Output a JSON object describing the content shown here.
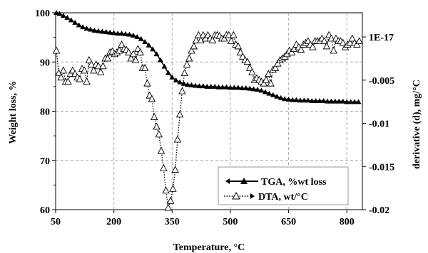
{
  "chart_data": {
    "type": "line",
    "xlabel": "Temperature, °C",
    "ylabel_left": "Weight loss,  %",
    "ylabel_right": "derivative (d), mg/°C",
    "xlim": [
      50,
      840
    ],
    "ylim_left": [
      60,
      100
    ],
    "ylim_right": [
      -0.02,
      0.0028
    ],
    "x_ticks": [
      50,
      200,
      350,
      500,
      650,
      800
    ],
    "x_tick_labels": [
      "50",
      "200",
      "350",
      "500",
      "650",
      "800"
    ],
    "y_left_ticks": [
      60,
      70,
      80,
      90,
      100
    ],
    "y_left_tick_labels": [
      "60",
      "70",
      "80",
      "90",
      "100"
    ],
    "y_right_ticks": [
      0,
      -0.005,
      -0.01,
      -0.015,
      -0.02
    ],
    "y_right_tick_labels": [
      "1E-17",
      "-0.005",
      "-0.01",
      "-0.015",
      "-0.02"
    ],
    "grid": true,
    "legend_position": "bottom-right",
    "series": [
      {
        "name": "TGA, %wt loss",
        "axis": "left",
        "style": "solid line with filled triangle markers",
        "x": [
          52,
          60,
          70,
          80,
          90,
          100,
          110,
          120,
          130,
          140,
          150,
          160,
          170,
          180,
          190,
          200,
          210,
          220,
          230,
          240,
          250,
          260,
          270,
          280,
          290,
          300,
          310,
          320,
          330,
          340,
          350,
          360,
          370,
          380,
          390,
          400,
          410,
          420,
          430,
          440,
          450,
          460,
          470,
          480,
          490,
          500,
          510,
          520,
          530,
          540,
          550,
          560,
          570,
          580,
          590,
          600,
          610,
          620,
          630,
          640,
          650,
          660,
          670,
          680,
          690,
          700,
          710,
          720,
          730,
          740,
          750,
          760,
          770,
          780,
          790,
          800,
          810,
          820,
          830
        ],
        "values": [
          100.0,
          99.8,
          99.4,
          99.0,
          98.5,
          98.0,
          97.5,
          97.1,
          96.8,
          96.6,
          96.4,
          96.3,
          96.2,
          96.1,
          96.0,
          95.9,
          95.8,
          95.8,
          95.7,
          95.6,
          95.4,
          95.1,
          94.7,
          94.1,
          93.4,
          92.6,
          91.6,
          90.4,
          89.1,
          87.8,
          86.9,
          86.3,
          85.9,
          85.6,
          85.4,
          85.3,
          85.2,
          85.1,
          85.1,
          85.0,
          85.0,
          85.0,
          84.9,
          84.9,
          84.9,
          84.8,
          84.8,
          84.8,
          84.7,
          84.7,
          84.6,
          84.5,
          84.4,
          84.2,
          83.9,
          83.6,
          83.3,
          83.0,
          82.7,
          82.5,
          82.4,
          82.3,
          82.3,
          82.2,
          82.2,
          82.2,
          82.1,
          82.1,
          82.1,
          82.1,
          82.0,
          82.0,
          82.0,
          82.0,
          82.0,
          81.9,
          81.9,
          81.9,
          81.9
        ]
      },
      {
        "name": "DTA, wt/°C",
        "axis": "right",
        "style": "dotted line with open triangle markers",
        "x": [
          52,
          58,
          64,
          70,
          76,
          82,
          88,
          94,
          100,
          106,
          112,
          118,
          124,
          130,
          136,
          142,
          148,
          154,
          160,
          166,
          172,
          178,
          184,
          190,
          196,
          202,
          208,
          214,
          220,
          226,
          232,
          238,
          244,
          250,
          256,
          262,
          268,
          274,
          280,
          286,
          292,
          298,
          304,
          310,
          316,
          322,
          328,
          334,
          340,
          346,
          352,
          358,
          364,
          370,
          376,
          382,
          388,
          394,
          400,
          406,
          412,
          418,
          424,
          430,
          436,
          442,
          448,
          454,
          460,
          466,
          472,
          478,
          484,
          490,
          496,
          502,
          508,
          514,
          520,
          526,
          532,
          538,
          544,
          550,
          556,
          562,
          568,
          574,
          580,
          586,
          592,
          598,
          604,
          610,
          616,
          622,
          628,
          634,
          640,
          646,
          652,
          658,
          664,
          670,
          676,
          682,
          688,
          694,
          700,
          706,
          712,
          718,
          724,
          730,
          736,
          742,
          748,
          754,
          760,
          766,
          772,
          778,
          784,
          790,
          796,
          802,
          808,
          814,
          820,
          826,
          832
        ],
        "values": [
          -0.0016,
          -0.0042,
          -0.0047,
          -0.0039,
          -0.0052,
          -0.0052,
          -0.0043,
          -0.0039,
          -0.0043,
          -0.0047,
          -0.0049,
          -0.0037,
          -0.0039,
          -0.0052,
          -0.0027,
          -0.0032,
          -0.0039,
          -0.0032,
          -0.0034,
          -0.0041,
          -0.0034,
          -0.0025,
          -0.0025,
          -0.0018,
          -0.0017,
          -0.002,
          -0.0018,
          -0.0016,
          -0.0009,
          -0.0014,
          -0.0015,
          -0.0018,
          -0.0025,
          -0.002,
          -0.0027,
          -0.0014,
          -0.0018,
          -0.0036,
          -0.0036,
          -0.0054,
          -0.0068,
          -0.0072,
          -0.0093,
          -0.0104,
          -0.0113,
          -0.0132,
          -0.0152,
          -0.0178,
          -0.0198,
          -0.019,
          -0.0176,
          -0.0154,
          -0.0119,
          -0.009,
          -0.0063,
          -0.0042,
          -0.0032,
          -0.0025,
          -0.0016,
          -0.0011,
          -0.0004,
          0.0002,
          -0.0004,
          0.0002,
          -0.0002,
          0.0002,
          -0.0002,
          -0.0004,
          0.0002,
          0.0002,
          0.0001,
          -0.0002,
          -0.0002,
          0.0002,
          0.0002,
          -0.0005,
          0.0002,
          -0.0009,
          -0.0011,
          -0.0018,
          -0.0023,
          -0.0027,
          -0.0029,
          -0.0036,
          -0.0041,
          -0.005,
          -0.0048,
          -0.005,
          -0.0052,
          -0.0054,
          -0.005,
          -0.0043,
          -0.0054,
          -0.0038,
          -0.0036,
          -0.0031,
          -0.0027,
          -0.0025,
          -0.0023,
          -0.002,
          -0.0016,
          -0.0018,
          -0.0014,
          -0.0009,
          -0.0012,
          -0.0015,
          -0.0009,
          -0.0007,
          -0.0005,
          -0.0009,
          -0.0012,
          -0.0005,
          -0.0005,
          -0.0005,
          -0.0002,
          -0.0005,
          -0.0011,
          0.0002,
          -0.0002,
          -0.0016,
          -0.0002,
          -0.0005,
          -0.0005,
          -0.0007,
          -0.0012,
          -0.0009,
          -0.0007,
          -0.0002,
          -0.0007,
          -0.0009,
          -0.0005
        ]
      }
    ]
  },
  "legend": {
    "items": [
      {
        "label": "TGA, %wt loss"
      },
      {
        "label": "DTA, wt/°C"
      }
    ]
  }
}
